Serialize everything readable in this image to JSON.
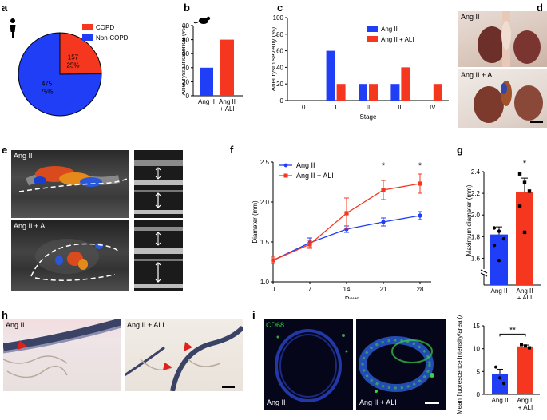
{
  "panel_labels": {
    "a": "a",
    "b": "b",
    "c": "c",
    "d": "d",
    "e": "e",
    "f": "f",
    "g": "g",
    "h": "h",
    "i": "i"
  },
  "colors": {
    "blue": "#1f3ef5",
    "red": "#f5371f",
    "green": "#35d24a"
  },
  "chart_data": [
    {
      "id": "a",
      "type": "pie",
      "labels": [
        "COPD",
        "Non-COPD"
      ],
      "values": [
        157,
        475
      ],
      "percent_labels": [
        "25%",
        "75%"
      ],
      "count_labels": [
        "157",
        "475"
      ],
      "legend": [
        "COPD",
        "Non-COPD"
      ],
      "legend_placement": "top-right"
    },
    {
      "id": "b",
      "type": "bar",
      "categories": [
        "Ang II",
        "Ang II + ALI"
      ],
      "category_lines": [
        [
          "Ang II"
        ],
        [
          "Ang II",
          "+ ALI"
        ]
      ],
      "values": [
        40,
        80
      ],
      "ylabel": "Aneurysm incidence (%)",
      "ylim": [
        0,
        100
      ],
      "yticks": [
        "0",
        "20",
        "40",
        "60",
        "80",
        "100"
      ]
    },
    {
      "id": "c",
      "type": "bar",
      "xlabel": "Stage",
      "ylabel": "Aneurysm severity (%)",
      "categories": [
        "0",
        "I",
        "II",
        "III",
        "IV"
      ],
      "ylim": [
        0,
        100
      ],
      "yticks": [
        "0",
        "20",
        "40",
        "60",
        "80",
        "100"
      ],
      "series": [
        {
          "name": "Ang II",
          "values": [
            0,
            60,
            20,
            20,
            0
          ]
        },
        {
          "name": "Ang II + ALI",
          "values": [
            0,
            20,
            20,
            40,
            20
          ]
        }
      ],
      "legend_placement": "top-right"
    },
    {
      "id": "f",
      "type": "line",
      "xlabel": "Days",
      "ylabel": "Diameter (mm)",
      "x": [
        0,
        7,
        14,
        21,
        28
      ],
      "xticks": [
        "0",
        "7",
        "14",
        "21",
        "28"
      ],
      "ylim": [
        1.0,
        2.5
      ],
      "yticks": [
        "1.0",
        "1.5",
        "2.0",
        "2.5"
      ],
      "series": [
        {
          "name": "Ang II",
          "values": [
            1.27,
            1.49,
            1.66,
            1.75,
            1.83
          ],
          "err": [
            0.04,
            0.06,
            0.04,
            0.05,
            0.05
          ]
        },
        {
          "name": "Ang II + ALI",
          "values": [
            1.27,
            1.47,
            1.86,
            2.15,
            2.23
          ],
          "err": [
            0.04,
            0.05,
            0.19,
            0.12,
            0.12
          ]
        }
      ],
      "significance": [
        {
          "x": 21,
          "label": "*"
        },
        {
          "x": 28,
          "label": "*"
        }
      ],
      "legend_placement": "top-left"
    },
    {
      "id": "g",
      "type": "bar",
      "categories": [
        "Ang II",
        "Ang II + ALI"
      ],
      "category_lines": [
        [
          "Ang II"
        ],
        [
          "Ang II",
          "+ ALI"
        ]
      ],
      "values": [
        1.82,
        2.21
      ],
      "err": [
        0.07,
        0.13
      ],
      "points": [
        [
          1.88,
          1.85,
          1.78,
          1.72,
          1.58
        ],
        [
          2.38,
          2.3,
          2.22,
          2.08,
          1.84
        ]
      ],
      "ylabel": "Maximum diameter (mm)",
      "ylim": [
        1.5,
        2.4
      ],
      "yticks": [
        "1.6",
        "1.8",
        "2.0",
        "2.2",
        "2.4"
      ],
      "significance": [
        {
          "category": 1,
          "label": "*"
        }
      ]
    },
    {
      "id": "i",
      "type": "bar",
      "categories": [
        "Ang II",
        "Ang II + ALI"
      ],
      "category_lines": [
        [
          "Ang II"
        ],
        [
          "Ang II",
          "+ ALI"
        ]
      ],
      "values": [
        4.5,
        10.5
      ],
      "err": [
        1.0,
        0.3
      ],
      "points": [
        [
          6.0,
          3.6,
          2.4
        ],
        [
          10.9,
          10.6,
          10.2
        ]
      ],
      "ylabel": "Mean fluorescence intensity/area (AU)",
      "ylim": [
        0,
        15
      ],
      "yticks": [
        "0",
        "5",
        "10",
        "15"
      ],
      "significance": [
        {
          "between": [
            0,
            1
          ],
          "label": "**"
        }
      ]
    }
  ],
  "images": {
    "d_top": "Ang II",
    "d_bottom": "Ang II + ALI",
    "e_top": "Ang II",
    "e_bottom": "Ang II + ALI",
    "h_left": "Ang II",
    "h_right": "Ang II + ALI",
    "i_stain": "CD68",
    "i_left": "Ang II",
    "i_right": "Ang II + ALI"
  }
}
